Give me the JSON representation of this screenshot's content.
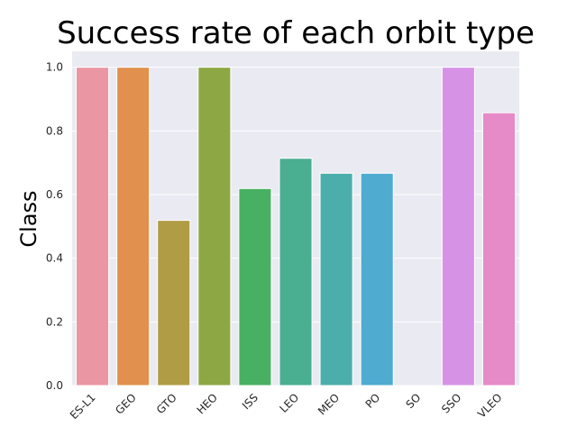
{
  "chart_data": {
    "type": "bar",
    "title": "Success rate of each orbit type",
    "xlabel": "",
    "ylabel": "Class",
    "categories": [
      "ES-L1",
      "GEO",
      "GTO",
      "HEO",
      "ISS",
      "LEO",
      "MEO",
      "PO",
      "SO",
      "SSO",
      "VLEO"
    ],
    "values": [
      1.0,
      1.0,
      0.519,
      1.0,
      0.619,
      0.714,
      0.667,
      0.667,
      0.0,
      1.0,
      0.857
    ],
    "colors": [
      "#ea96a3",
      "#e1914d",
      "#b19c46",
      "#8da744",
      "#48b062",
      "#4aae91",
      "#4caeaa",
      "#4fabd0",
      "#a4a5e9",
      "#d693e6",
      "#e68ac8"
    ],
    "ylim": [
      0,
      1.05
    ],
    "yticks": [
      "0.0",
      "0.2",
      "0.4",
      "0.6",
      "0.8",
      "1.0"
    ],
    "grid": true,
    "background": "#eaeaf2"
  }
}
